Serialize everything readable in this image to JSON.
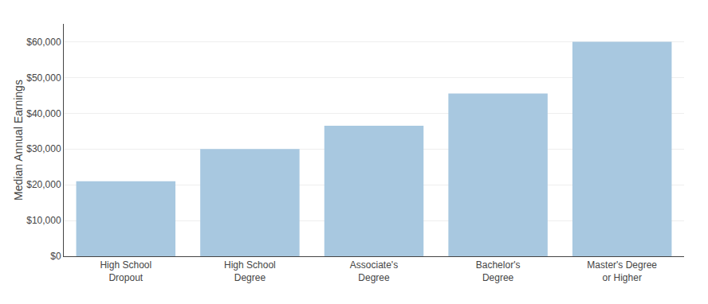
{
  "chart_data": {
    "type": "bar",
    "categories": [
      "High School\nDropout",
      "High School\nDegree",
      "Associate's\nDegree",
      "Bachelor's\nDegree",
      "Master's Degree\nor Higher"
    ],
    "values": [
      21000,
      30000,
      36500,
      45500,
      60000
    ],
    "color": "#a8c8e0",
    "ylabel": "Median Annual Earnings",
    "ylim": [
      0,
      65000
    ],
    "yticks": [
      {
        "value": 0,
        "label": "$0"
      },
      {
        "value": 10000,
        "label": "$10,000"
      },
      {
        "value": 20000,
        "label": "$20,000"
      },
      {
        "value": 30000,
        "label": "$30,000"
      },
      {
        "value": 40000,
        "label": "$40,000"
      },
      {
        "value": 50000,
        "label": "$50,000"
      },
      {
        "value": 60000,
        "label": "$60,000"
      }
    ],
    "grid": true
  }
}
